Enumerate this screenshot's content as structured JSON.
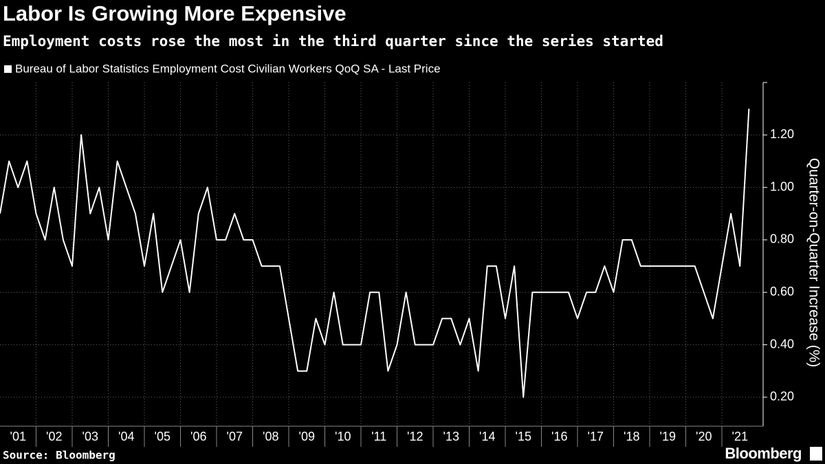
{
  "chart_data": {
    "type": "line",
    "title": "Labor Is Growing More Expensive",
    "subtitle": "Employment costs rose the most in the third quarter since the series started",
    "y_axis_label": "Quarter-on-Quarter Increase (%)",
    "source": "Source: Bloomberg",
    "brand": "Bloomberg",
    "categories": [
      "'01",
      null,
      null,
      null,
      "'02",
      null,
      null,
      null,
      "'03",
      null,
      null,
      null,
      "'04",
      null,
      null,
      null,
      "'05",
      null,
      null,
      null,
      "'06",
      null,
      null,
      null,
      "'07",
      null,
      null,
      null,
      "'08",
      null,
      null,
      null,
      "'09",
      null,
      null,
      null,
      "'10",
      null,
      null,
      null,
      "'11",
      null,
      null,
      null,
      "'12",
      null,
      null,
      null,
      "'13",
      null,
      null,
      null,
      "'14",
      null,
      null,
      null,
      "'15",
      null,
      null,
      null,
      "'16",
      null,
      null,
      null,
      "'17",
      null,
      null,
      null,
      "'18",
      null,
      null,
      null,
      "'19",
      null,
      null,
      null,
      "'20",
      null,
      null,
      null,
      "'21",
      null,
      null,
      null
    ],
    "series": [
      {
        "name": "Bureau of Labor Statistics Employment Cost Civilian Workers QoQ SA - Last Price",
        "color": "#ffffff",
        "values": [
          0.9,
          1.1,
          1.0,
          1.1,
          0.9,
          0.8,
          1.0,
          0.8,
          0.7,
          1.2,
          0.9,
          1.0,
          0.8,
          1.1,
          1.0,
          0.9,
          0.7,
          0.9,
          0.6,
          0.7,
          0.8,
          0.6,
          0.9,
          1.0,
          0.8,
          0.8,
          0.9,
          0.8,
          0.8,
          0.7,
          0.7,
          0.7,
          0.5,
          0.3,
          0.3,
          0.5,
          0.4,
          0.6,
          0.4,
          0.4,
          0.4,
          0.6,
          0.6,
          0.3,
          0.4,
          0.6,
          0.4,
          0.4,
          0.4,
          0.5,
          0.5,
          0.4,
          0.5,
          0.3,
          0.7,
          0.7,
          0.5,
          0.7,
          0.2,
          0.6,
          0.6,
          0.6,
          0.6,
          0.6,
          0.5,
          0.6,
          0.6,
          0.7,
          0.6,
          0.8,
          0.8,
          0.7,
          0.7,
          0.7,
          0.7,
          0.7,
          0.7,
          0.7,
          0.6,
          0.5,
          0.7,
          0.9,
          0.7,
          1.3
        ]
      }
    ],
    "ylim": [
      0.1,
      1.4
    ],
    "yticks": [
      {
        "value": 0.2,
        "label": "0.20"
      },
      {
        "value": 0.4,
        "label": "0.40"
      },
      {
        "value": 0.6,
        "label": "0.60"
      },
      {
        "value": 0.8,
        "label": "0.80"
      },
      {
        "value": 1.0,
        "label": "1.00"
      },
      {
        "value": 1.2,
        "label": "1.20"
      }
    ],
    "grid": true
  }
}
